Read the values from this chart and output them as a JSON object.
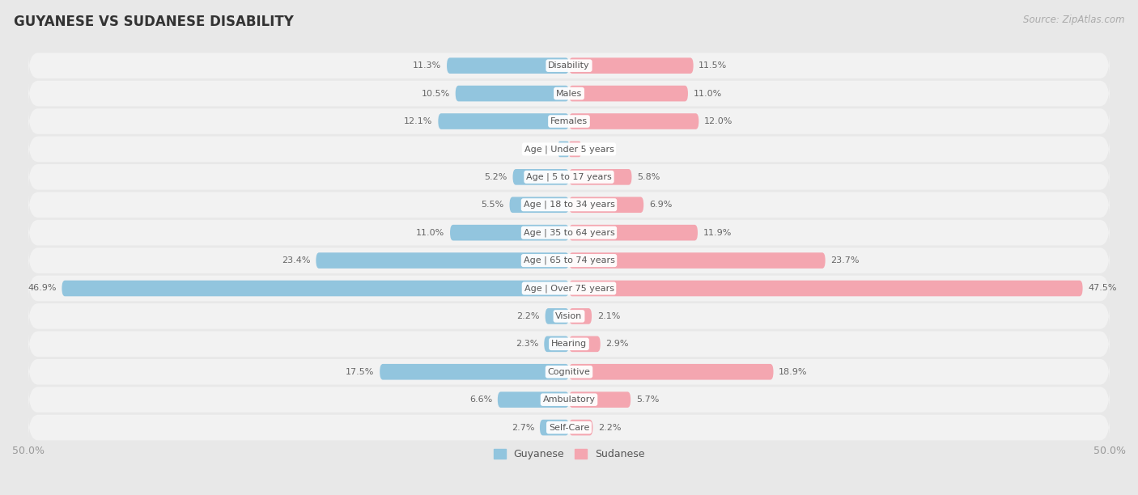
{
  "title": "GUYANESE VS SUDANESE DISABILITY",
  "source": "Source: ZipAtlas.com",
  "categories": [
    "Disability",
    "Males",
    "Females",
    "Age | Under 5 years",
    "Age | 5 to 17 years",
    "Age | 18 to 34 years",
    "Age | 35 to 64 years",
    "Age | 65 to 74 years",
    "Age | Over 75 years",
    "Vision",
    "Hearing",
    "Cognitive",
    "Ambulatory",
    "Self-Care"
  ],
  "guyanese": [
    11.3,
    10.5,
    12.1,
    1.0,
    5.2,
    5.5,
    11.0,
    23.4,
    46.9,
    2.2,
    2.3,
    17.5,
    6.6,
    2.7
  ],
  "sudanese": [
    11.5,
    11.0,
    12.0,
    1.1,
    5.8,
    6.9,
    11.9,
    23.7,
    47.5,
    2.1,
    2.9,
    18.9,
    5.7,
    2.2
  ],
  "guyanese_color": "#92c5de",
  "sudanese_color": "#f4a6b0",
  "bg_color": "#e8e8e8",
  "row_bg_color": "#f2f2f2",
  "axis_max": 50.0,
  "legend_labels": [
    "Guyanese",
    "Sudanese"
  ],
  "title_fontsize": 12,
  "source_fontsize": 8.5,
  "bar_height": 0.62,
  "label_fontsize": 8,
  "category_fontsize": 8
}
